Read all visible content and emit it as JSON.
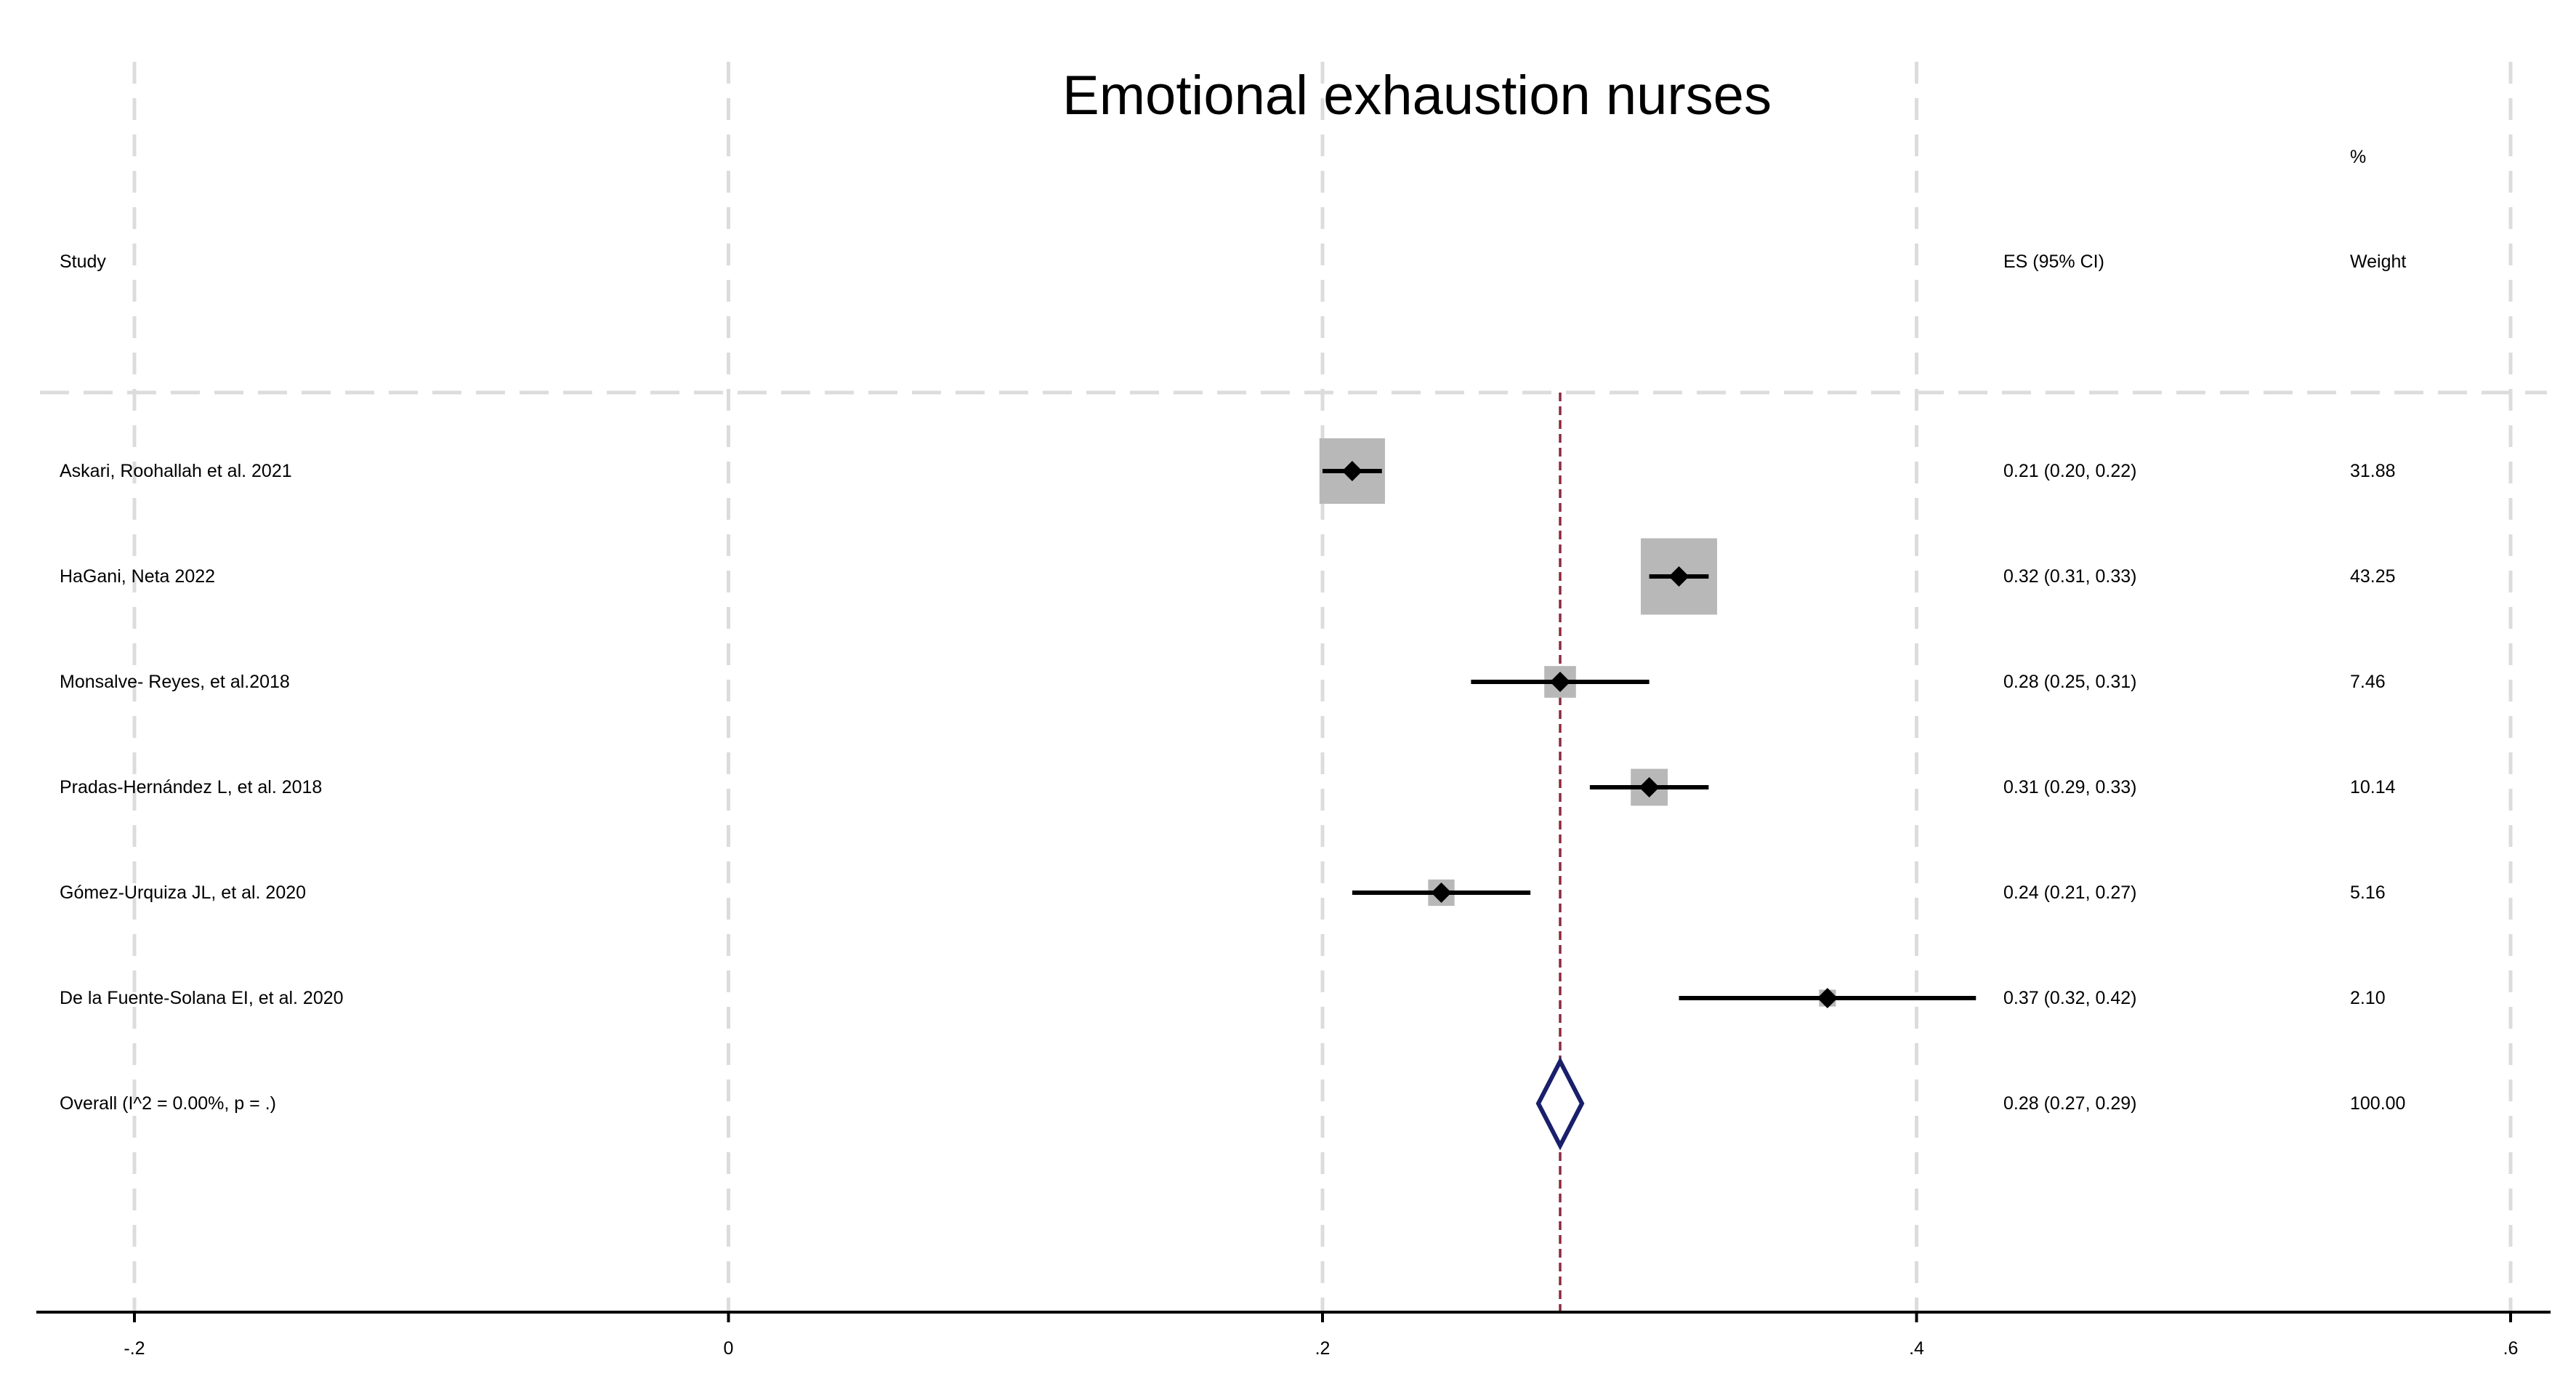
{
  "chart_data": {
    "type": "forest",
    "title": "Emotional exhaustion nurses",
    "headers": {
      "study": "Study",
      "es": "ES (95% CI)",
      "weight_top": "%",
      "weight": "Weight"
    },
    "studies": [
      {
        "label": "Askari, Roohallah  et al. 2021",
        "es": 0.21,
        "lower": 0.2,
        "upper": 0.22,
        "ci_text": "0.21 (0.20, 0.22)",
        "weight": 31.88,
        "weight_text": "31.88"
      },
      {
        "label": "HaGani, Neta 2022",
        "es": 0.32,
        "lower": 0.31,
        "upper": 0.33,
        "ci_text": "0.32 (0.31, 0.33)",
        "weight": 43.25,
        "weight_text": "43.25"
      },
      {
        "label": "Monsalve- Reyes, et al.2018",
        "es": 0.28,
        "lower": 0.25,
        "upper": 0.31,
        "ci_text": "0.28 (0.25, 0.31)",
        "weight": 7.46,
        "weight_text": "7.46"
      },
      {
        "label": "Pradas-Hernández L, et al. 2018",
        "es": 0.31,
        "lower": 0.29,
        "upper": 0.33,
        "ci_text": "0.31 (0.29, 0.33)",
        "weight": 10.14,
        "weight_text": "10.14"
      },
      {
        "label": "Gómez-Urquiza JL, et al. 2020",
        "es": 0.24,
        "lower": 0.21,
        "upper": 0.27,
        "ci_text": "0.24 (0.21, 0.27)",
        "weight": 5.16,
        "weight_text": "5.16"
      },
      {
        "label": "De la Fuente-Solana EI, et al. 2020",
        "es": 0.37,
        "lower": 0.32,
        "upper": 0.42,
        "ci_text": "0.37 (0.32, 0.42)",
        "weight": 2.1,
        "weight_text": "2.10"
      }
    ],
    "overall": {
      "label": "Overall  (I^2 = 0.00%, p = .)",
      "es": 0.28,
      "lower": 0.27,
      "upper": 0.29,
      "ci_text": "0.28 (0.27, 0.29)",
      "weight_text": "100.00"
    },
    "x_ticks": [
      {
        "value": -0.2,
        "label": "-.2"
      },
      {
        "value": 0,
        "label": "0"
      },
      {
        "value": 0.2,
        "label": ".2"
      },
      {
        "value": 0.4,
        "label": ".4"
      },
      {
        "value": 0.6,
        "label": ".6"
      }
    ],
    "xlim": [
      -0.2,
      0.6
    ],
    "grid": true,
    "colors": {
      "box": "#b8b8b8",
      "ci_line": "#000000",
      "point": "#000000",
      "overall_line": "#8b2a3f",
      "diamond": "#1a1f6b",
      "grid": "#dcdcdc",
      "axis": "#000000"
    }
  }
}
